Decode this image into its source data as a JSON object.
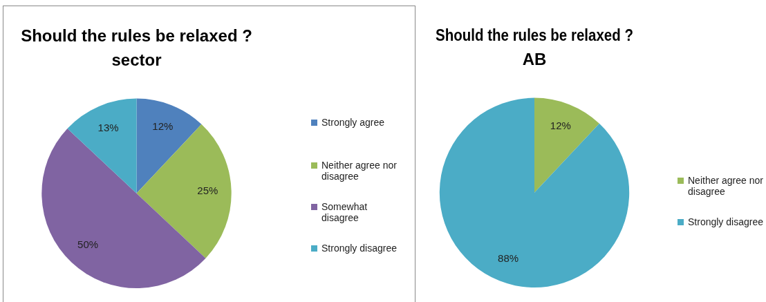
{
  "chart_data": [
    {
      "type": "pie",
      "title": "Should the rules be relaxed ?",
      "subtitle": "sector",
      "categories": [
        "Strongly agree",
        "Neither agree nor disagree",
        "Somewhat disagree",
        "Strongly disagree"
      ],
      "values": [
        12,
        25,
        50,
        13
      ],
      "value_labels": [
        "12%",
        "25%",
        "50%",
        "13%"
      ],
      "colors": [
        "#4f81bd",
        "#9bbb59",
        "#8064a2",
        "#4bacc6"
      ],
      "legend": "right"
    },
    {
      "type": "pie",
      "title": "Should the rules be relaxed ?",
      "subtitle": "AB",
      "categories": [
        "Neither agree nor disagree",
        "Strongly disagree"
      ],
      "values": [
        12,
        88
      ],
      "value_labels": [
        "12%",
        "88%"
      ],
      "colors": [
        "#9bbb59",
        "#4bacc6"
      ],
      "legend": "right"
    }
  ]
}
